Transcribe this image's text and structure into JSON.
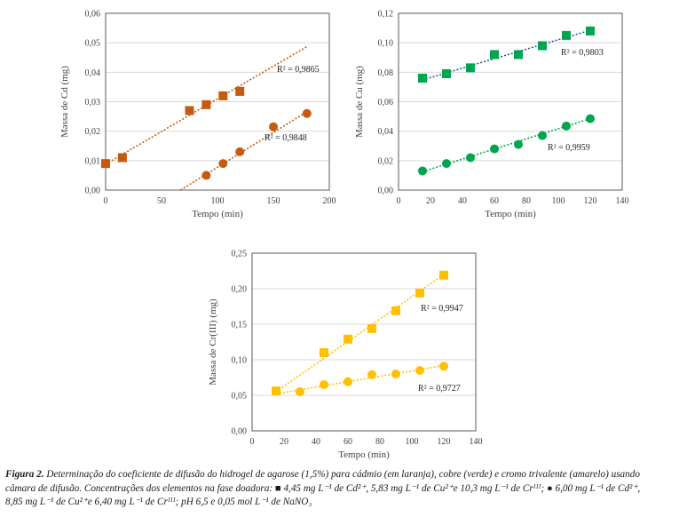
{
  "chart_data": [
    {
      "type": "scatter",
      "title": "",
      "xlabel": "Tempo (min)",
      "ylabel": "Massa de Cd (mg)",
      "xlim": [
        0,
        200
      ],
      "ylim": [
        0,
        0.06
      ],
      "xticks": [
        "0",
        "50",
        "100",
        "150",
        "200"
      ],
      "xtick_values": [
        0,
        50,
        100,
        150,
        200
      ],
      "yticks": [
        "0,00",
        "0,01",
        "0,02",
        "0,03",
        "0,04",
        "0,05",
        "0,06"
      ],
      "ytick_values": [
        0,
        0.01,
        0.02,
        0.03,
        0.04,
        0.05,
        0.06
      ],
      "grid": true,
      "series": [
        {
          "name": "Cd square",
          "marker": "square",
          "color": "#C55A11",
          "trend_color": "#C55A11",
          "x": [
            0,
            15,
            75,
            90,
            105,
            120
          ],
          "y": [
            0.009,
            0.011,
            0.027,
            0.029,
            0.032,
            0.0335
          ],
          "trend": {
            "x": [
              0,
              180
            ],
            "y": [
              0.0088,
              0.0487
            ]
          },
          "r2": "R² = 0,9865"
        },
        {
          "name": "Cd circle",
          "marker": "circle",
          "color": "#C55A11",
          "trend_color": "#C55A11",
          "x": [
            90,
            105,
            120,
            150,
            180
          ],
          "y": [
            0.005,
            0.009,
            0.013,
            0.0215,
            0.026
          ],
          "trend": {
            "x": [
              67,
              180
            ],
            "y": [
              0.0,
              0.0266
            ]
          },
          "r2": "R² = 0,9848"
        }
      ]
    },
    {
      "type": "scatter",
      "title": "",
      "xlabel": "Tempo (min)",
      "ylabel": "Massa de Cu (mg)",
      "xlim": [
        0,
        140
      ],
      "ylim": [
        0,
        0.12
      ],
      "xticks": [
        "0",
        "20",
        "40",
        "60",
        "80",
        "100",
        "120",
        "140"
      ],
      "xtick_values": [
        0,
        20,
        40,
        60,
        80,
        100,
        120,
        140
      ],
      "yticks": [
        "0,00",
        "0,02",
        "0,04",
        "0,06",
        "0,08",
        "0,10",
        "0,12"
      ],
      "ytick_values": [
        0,
        0.02,
        0.04,
        0.06,
        0.08,
        0.1,
        0.12
      ],
      "grid": true,
      "series": [
        {
          "name": "Cu square",
          "marker": "square",
          "color": "#00A64F",
          "trend_color": "#1F5C8C",
          "x": [
            15,
            30,
            45,
            60,
            75,
            90,
            105,
            120
          ],
          "y": [
            0.076,
            0.079,
            0.083,
            0.092,
            0.092,
            0.098,
            0.105,
            0.108
          ],
          "trend": {
            "x": [
              15,
              120
            ],
            "y": [
              0.0748,
              0.1085
            ]
          },
          "r2": "R² = 0,9803"
        },
        {
          "name": "Cu circle",
          "marker": "circle",
          "color": "#00A64F",
          "trend_color": "#00A64F",
          "x": [
            15,
            30,
            45,
            60,
            75,
            90,
            105,
            120
          ],
          "y": [
            0.013,
            0.018,
            0.022,
            0.028,
            0.031,
            0.037,
            0.0435,
            0.0485
          ],
          "trend": {
            "x": [
              15,
              120
            ],
            "y": [
              0.0125,
              0.0485
            ]
          },
          "r2": "R² = 0,9959"
        }
      ]
    },
    {
      "type": "scatter",
      "title": "",
      "xlabel": "Tempo (min)",
      "ylabel": "Massa de Cr(III) (mg)",
      "xlim": [
        0,
        140
      ],
      "ylim": [
        0,
        0.25
      ],
      "xticks": [
        "0",
        "20",
        "40",
        "60",
        "80",
        "100",
        "120",
        "140"
      ],
      "xtick_values": [
        0,
        20,
        40,
        60,
        80,
        100,
        120,
        140
      ],
      "yticks": [
        "0,00",
        "0,05",
        "0,10",
        "0,15",
        "0,20",
        "0,25"
      ],
      "ytick_values": [
        0,
        0.05,
        0.1,
        0.15,
        0.2,
        0.25
      ],
      "grid": true,
      "series": [
        {
          "name": "Cr square",
          "marker": "square",
          "color": "#FFC000",
          "trend_color": "#FFC000",
          "x": [
            15,
            45,
            60,
            75,
            90,
            105,
            120
          ],
          "y": [
            0.056,
            0.11,
            0.129,
            0.144,
            0.169,
            0.194,
            0.219
          ],
          "trend": {
            "x": [
              15,
              120
            ],
            "y": [
              0.055,
              0.22
            ]
          },
          "r2": "R² = 0,9947"
        },
        {
          "name": "Cr circle",
          "marker": "circle",
          "color": "#FFC000",
          "trend_color": "#FFC000",
          "x": [
            30,
            45,
            60,
            75,
            90,
            105,
            120
          ],
          "y": [
            0.055,
            0.065,
            0.069,
            0.079,
            0.08,
            0.085,
            0.091
          ],
          "trend": {
            "x": [
              15,
              120
            ],
            "y": [
              0.052,
              0.092
            ]
          },
          "r2": "R² = 0,9727"
        }
      ]
    }
  ],
  "caption": {
    "label": "Figura 2.",
    "line1": " Determinação do coeficiente de difusão do hidrogel de agarose (1,5%) para cádmio (em laranja), cobre (verde) e cromo trivalente (amarelo) usando",
    "line2": "câmara de difusão. Concentrações dos elementos na fase doadora: ■ 4,45 mg L⁻¹ de Cd²⁺, 5,83 mg L⁻¹ de Cu²⁺e 10,3 mg L⁻¹ de Crᴵᴵᴵ; ● 6,00 mg L⁻¹ de Cd²⁺,",
    "line3": "8,85 mg L⁻¹ de Cu²⁺e 6,40 mg L⁻¹ de Crᴵᴵᴵ; pH 6,5 e 0,05 mol L⁻¹ de NaNO₃"
  }
}
